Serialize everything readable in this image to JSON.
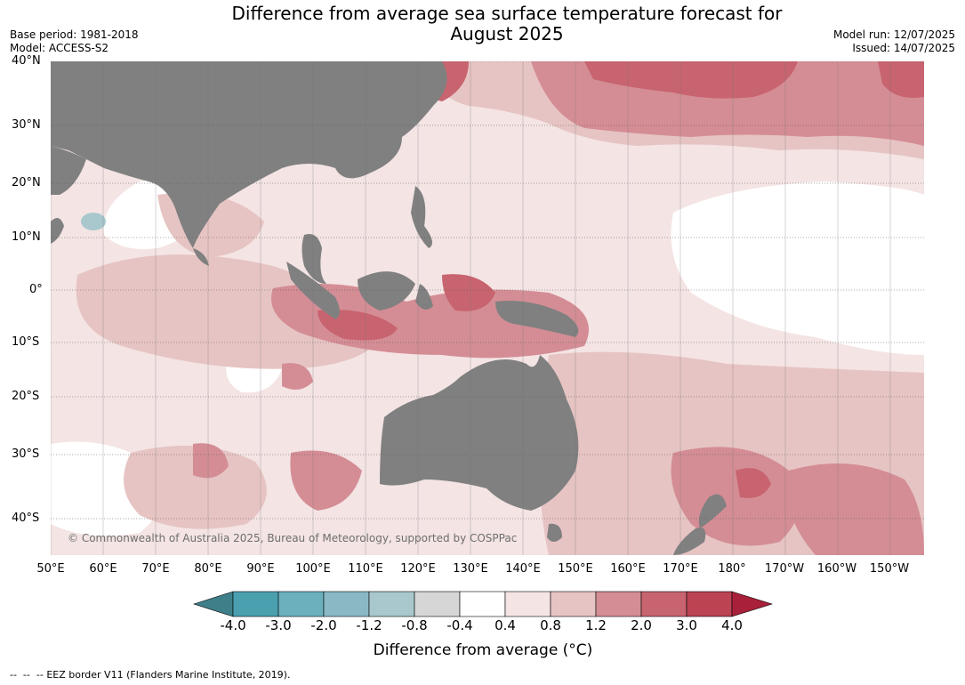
{
  "header": {
    "title_line1": "Difference from average sea surface temperature forecast for",
    "title_line2": "August 2025",
    "base_period": "Base period: 1981-2018",
    "model": "Model: ACCESS-S2",
    "model_run": "Model run: 12/07/2025",
    "issued": "Issued: 14/07/2025"
  },
  "map": {
    "latitude_labels": [
      "40°N",
      "30°N",
      "20°N",
      "10°N",
      "0°",
      "10°S",
      "20°S",
      "30°S",
      "40°S"
    ],
    "longitude_labels": [
      "50°E",
      "60°E",
      "70°E",
      "80°E",
      "90°E",
      "100°E",
      "110°E",
      "120°E",
      "130°E",
      "140°E",
      "150°E",
      "160°E",
      "170°E",
      "180°",
      "170°W",
      "160°W",
      "150°W"
    ],
    "copyright": "© Commonwealth of Australia 2025, Bureau of Meteorology, supported by COSPPac",
    "colors": {
      "land": "#808080",
      "ocean_base": "#f4e4e4",
      "grid": "#555555"
    }
  },
  "colorbar": {
    "ticks": [
      "-4.0",
      "-3.0",
      "-2.0",
      "-1.2",
      "-0.8",
      "-0.4",
      "0.4",
      "0.8",
      "1.2",
      "2.0",
      "3.0",
      "4.0"
    ],
    "colors": [
      "#3f7f8a",
      "#4ba0b0",
      "#6cb0bd",
      "#8ab9c5",
      "#a9c8cd",
      "#d6d6d6",
      "#ffffff",
      "#f4e4e4",
      "#e6c4c3",
      "#d48d95",
      "#c8646f",
      "#bb4352",
      "#a8203a"
    ],
    "label": "Difference from average (°C)"
  },
  "footer": {
    "legend_text": "EEZ border V11 (Flanders Marine Institute, 2019)."
  }
}
